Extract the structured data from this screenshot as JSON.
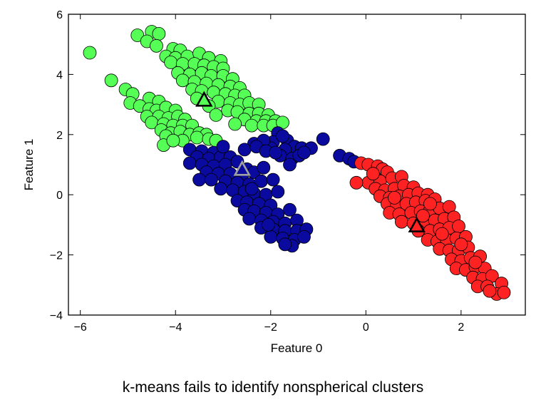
{
  "caption": "k-means fails to identify nonspherical clusters",
  "chart_data": {
    "type": "scatter",
    "title": "",
    "xlabel": "Feature 0",
    "ylabel": "Feature 1",
    "xlim": [
      -6.25,
      3.35
    ],
    "ylim": [
      -4,
      6
    ],
    "xticks": [
      -6,
      -4,
      -2,
      0,
      2
    ],
    "yticks": [
      -4,
      -2,
      0,
      2,
      4,
      6
    ],
    "xtick_labels": [
      "−6",
      "−4",
      "−2",
      "0",
      "2"
    ],
    "ytick_labels": [
      "−4",
      "−2",
      "0",
      "2",
      "4",
      "6"
    ],
    "grid": false,
    "legend": "none",
    "series": [
      {
        "color": "#55ff55",
        "points": [
          [
            -5.8,
            4.72
          ],
          [
            -4.5,
            5.42
          ],
          [
            -4.35,
            5.35
          ],
          [
            -4.8,
            5.3
          ],
          [
            -4.6,
            5.1
          ],
          [
            -4.4,
            4.95
          ],
          [
            -4.05,
            4.85
          ],
          [
            -3.9,
            4.8
          ],
          [
            -4.2,
            4.6
          ],
          [
            -4.0,
            4.55
          ],
          [
            -3.75,
            4.6
          ],
          [
            -3.5,
            4.7
          ],
          [
            -3.3,
            4.55
          ],
          [
            -3.05,
            4.45
          ],
          [
            -4.1,
            4.4
          ],
          [
            -3.85,
            4.35
          ],
          [
            -3.6,
            4.35
          ],
          [
            -3.4,
            4.3
          ],
          [
            -3.2,
            4.25
          ],
          [
            -3.0,
            4.2
          ],
          [
            -3.95,
            4.05
          ],
          [
            -3.7,
            4.0
          ],
          [
            -3.45,
            4.05
          ],
          [
            -3.25,
            3.95
          ],
          [
            -3.0,
            3.95
          ],
          [
            -2.8,
            3.85
          ],
          [
            -3.85,
            3.8
          ],
          [
            -3.6,
            3.75
          ],
          [
            -3.35,
            3.7
          ],
          [
            -3.1,
            3.65
          ],
          [
            -2.85,
            3.6
          ],
          [
            -2.65,
            3.55
          ],
          [
            -3.65,
            3.5
          ],
          [
            -3.45,
            3.45
          ],
          [
            -3.2,
            3.4
          ],
          [
            -2.95,
            3.35
          ],
          [
            -2.75,
            3.3
          ],
          [
            -2.55,
            3.3
          ],
          [
            -3.55,
            3.2
          ],
          [
            -3.1,
            3.1
          ],
          [
            -2.85,
            3.05
          ],
          [
            -2.65,
            3.0
          ],
          [
            -2.45,
            3.05
          ],
          [
            -2.25,
            3.0
          ],
          [
            -3.3,
            2.95
          ],
          [
            -2.9,
            2.8
          ],
          [
            -2.7,
            2.75
          ],
          [
            -2.45,
            2.7
          ],
          [
            -2.25,
            2.7
          ],
          [
            -2.05,
            2.65
          ],
          [
            -3.15,
            2.65
          ],
          [
            -2.55,
            2.5
          ],
          [
            -2.3,
            2.45
          ],
          [
            -2.1,
            2.45
          ],
          [
            -1.9,
            2.45
          ],
          [
            -2.75,
            2.35
          ],
          [
            -2.4,
            2.3
          ],
          [
            -2.15,
            2.3
          ],
          [
            -1.95,
            2.3
          ],
          [
            -1.75,
            2.4
          ],
          [
            -5.35,
            3.8
          ],
          [
            -5.05,
            3.5
          ],
          [
            -4.9,
            3.35
          ],
          [
            -4.95,
            3.05
          ],
          [
            -4.55,
            3.2
          ],
          [
            -4.35,
            3.1
          ],
          [
            -4.75,
            2.95
          ],
          [
            -4.55,
            2.85
          ],
          [
            -4.4,
            2.8
          ],
          [
            -4.2,
            2.9
          ],
          [
            -4.0,
            2.8
          ],
          [
            -4.6,
            2.6
          ],
          [
            -4.35,
            2.6
          ],
          [
            -4.15,
            2.55
          ],
          [
            -3.95,
            2.6
          ],
          [
            -3.8,
            2.5
          ],
          [
            -4.5,
            2.4
          ],
          [
            -4.25,
            2.35
          ],
          [
            -4.05,
            2.3
          ],
          [
            -3.85,
            2.3
          ],
          [
            -3.65,
            2.3
          ],
          [
            -4.3,
            2.15
          ],
          [
            -4.1,
            2.05
          ],
          [
            -3.9,
            2.1
          ],
          [
            -3.7,
            2.0
          ],
          [
            -3.5,
            2.05
          ],
          [
            -3.35,
            2.0
          ],
          [
            -4.2,
            1.95
          ],
          [
            -3.55,
            1.9
          ],
          [
            -3.3,
            1.85
          ],
          [
            -3.15,
            1.8
          ],
          [
            -4.25,
            1.65
          ],
          [
            -3.85,
            1.8
          ],
          [
            -4.05,
            1.8
          ]
        ]
      },
      {
        "color": "#0a0a9e",
        "points": [
          [
            -1.85,
            2.05
          ],
          [
            -1.65,
            1.8
          ],
          [
            -1.95,
            1.75
          ],
          [
            -1.5,
            1.6
          ],
          [
            -1.35,
            1.55
          ],
          [
            -1.15,
            1.55
          ],
          [
            -1.7,
            1.5
          ],
          [
            -2.0,
            1.55
          ],
          [
            -2.35,
            1.7
          ],
          [
            -2.15,
            1.8
          ],
          [
            -1.8,
            1.3
          ],
          [
            -1.55,
            1.2
          ],
          [
            -1.6,
            1.0
          ],
          [
            -1.4,
            1.3
          ],
          [
            -3.7,
            1.5
          ],
          [
            -3.45,
            1.45
          ],
          [
            -3.2,
            1.4
          ],
          [
            -3.55,
            1.25
          ],
          [
            -3.3,
            1.2
          ],
          [
            -3.05,
            1.25
          ],
          [
            -2.85,
            1.25
          ],
          [
            -3.7,
            1.05
          ],
          [
            -3.45,
            1.0
          ],
          [
            -3.2,
            0.95
          ],
          [
            -2.95,
            1.0
          ],
          [
            -2.7,
            1.1
          ],
          [
            -2.5,
            0.85
          ],
          [
            -3.35,
            0.75
          ],
          [
            -3.1,
            0.7
          ],
          [
            -2.85,
            0.7
          ],
          [
            -2.6,
            0.65
          ],
          [
            -2.35,
            0.75
          ],
          [
            -2.15,
            0.9
          ],
          [
            -3.5,
            0.5
          ],
          [
            -3.25,
            0.5
          ],
          [
            -2.95,
            0.45
          ],
          [
            -2.7,
            0.4
          ],
          [
            -2.45,
            0.35
          ],
          [
            -2.2,
            0.45
          ],
          [
            -1.95,
            0.5
          ],
          [
            -3.05,
            0.2
          ],
          [
            -2.8,
            0.15
          ],
          [
            -2.55,
            0.1
          ],
          [
            -2.35,
            0.05
          ],
          [
            -2.1,
            0.0
          ],
          [
            -1.85,
            0.1
          ],
          [
            -2.7,
            -0.2
          ],
          [
            -2.5,
            -0.25
          ],
          [
            -2.25,
            -0.3
          ],
          [
            -2.0,
            -0.35
          ],
          [
            -2.55,
            -0.5
          ],
          [
            -2.35,
            -0.55
          ],
          [
            -2.1,
            -0.6
          ],
          [
            -1.85,
            -0.65
          ],
          [
            -1.6,
            -0.5
          ],
          [
            -2.45,
            -0.8
          ],
          [
            -2.2,
            -0.85
          ],
          [
            -1.95,
            -0.9
          ],
          [
            -1.7,
            -0.95
          ],
          [
            -1.45,
            -0.85
          ],
          [
            -2.2,
            -1.1
          ],
          [
            -1.95,
            -1.15
          ],
          [
            -1.7,
            -1.2
          ],
          [
            -1.45,
            -1.2
          ],
          [
            -1.25,
            -1.15
          ],
          [
            -2.0,
            -1.4
          ],
          [
            -1.75,
            -1.45
          ],
          [
            -1.5,
            -1.5
          ],
          [
            -1.3,
            -1.4
          ],
          [
            -1.55,
            -1.7
          ],
          [
            -1.7,
            -1.65
          ],
          [
            -2.55,
            1.5
          ],
          [
            -2.3,
            1.6
          ],
          [
            -2.1,
            1.45
          ],
          [
            -1.9,
            1.4
          ],
          [
            -1.3,
            1.4
          ],
          [
            -1.75,
            1.95
          ],
          [
            -0.9,
            1.85
          ],
          [
            -0.55,
            1.3
          ],
          [
            -0.35,
            1.2
          ],
          [
            -0.25,
            1.1
          ],
          [
            -2.05,
            -1.0
          ],
          [
            -2.4,
            0.2
          ],
          [
            -3.0,
            1.6
          ]
        ]
      },
      {
        "color": "#ff2222",
        "points": [
          [
            -0.1,
            1.05
          ],
          [
            0.05,
            1.0
          ],
          [
            0.25,
            0.95
          ],
          [
            0.35,
            0.85
          ],
          [
            0.45,
            0.75
          ],
          [
            0.2,
            0.55
          ],
          [
            0.05,
            0.4
          ],
          [
            0.3,
            0.45
          ],
          [
            0.55,
            0.55
          ],
          [
            0.75,
            0.6
          ],
          [
            -0.2,
            0.4
          ],
          [
            0.2,
            0.2
          ],
          [
            0.4,
            0.15
          ],
          [
            0.6,
            0.2
          ],
          [
            0.8,
            0.3
          ],
          [
            1.0,
            0.25
          ],
          [
            0.3,
            -0.05
          ],
          [
            0.5,
            -0.1
          ],
          [
            0.7,
            -0.05
          ],
          [
            0.9,
            0.0
          ],
          [
            1.1,
            0.05
          ],
          [
            1.3,
            0.0
          ],
          [
            0.45,
            -0.3
          ],
          [
            0.65,
            -0.35
          ],
          [
            0.85,
            -0.3
          ],
          [
            1.05,
            -0.25
          ],
          [
            1.25,
            -0.2
          ],
          [
            1.45,
            -0.15
          ],
          [
            0.5,
            -0.6
          ],
          [
            0.7,
            -0.65
          ],
          [
            0.95,
            -0.6
          ],
          [
            1.15,
            -0.55
          ],
          [
            1.35,
            -0.5
          ],
          [
            1.55,
            -0.45
          ],
          [
            1.75,
            -0.4
          ],
          [
            0.75,
            -0.9
          ],
          [
            1.0,
            -0.95
          ],
          [
            1.25,
            -0.9
          ],
          [
            1.45,
            -0.85
          ],
          [
            1.65,
            -0.8
          ],
          [
            1.85,
            -0.75
          ],
          [
            1.1,
            -1.2
          ],
          [
            1.35,
            -1.2
          ],
          [
            1.55,
            -1.15
          ],
          [
            1.75,
            -1.1
          ],
          [
            1.95,
            -1.05
          ],
          [
            1.3,
            -1.5
          ],
          [
            1.5,
            -1.55
          ],
          [
            1.7,
            -1.5
          ],
          [
            1.9,
            -1.45
          ],
          [
            2.1,
            -1.4
          ],
          [
            1.55,
            -1.8
          ],
          [
            1.75,
            -1.85
          ],
          [
            1.95,
            -1.85
          ],
          [
            2.15,
            -1.75
          ],
          [
            1.8,
            -2.15
          ],
          [
            2.0,
            -2.2
          ],
          [
            2.2,
            -2.1
          ],
          [
            2.4,
            -2.05
          ],
          [
            1.9,
            -2.45
          ],
          [
            2.1,
            -2.5
          ],
          [
            2.3,
            -2.4
          ],
          [
            2.5,
            -2.45
          ],
          [
            2.25,
            -2.75
          ],
          [
            2.45,
            -2.8
          ],
          [
            2.65,
            -2.7
          ],
          [
            2.35,
            -3.05
          ],
          [
            2.55,
            -3.05
          ],
          [
            2.85,
            -2.95
          ],
          [
            2.75,
            -3.3
          ],
          [
            2.9,
            -3.25
          ],
          [
            2.6,
            -3.2
          ],
          [
            1.35,
            -0.3
          ],
          [
            0.15,
            0.7
          ],
          [
            0.6,
            -0.1
          ],
          [
            1.2,
            -0.7
          ],
          [
            1.6,
            -1.3
          ],
          [
            2.0,
            -1.65
          ],
          [
            2.3,
            -2.25
          ]
        ]
      }
    ],
    "centers": [
      {
        "x": -3.4,
        "y": 3.15,
        "fill": "#55ff55"
      },
      {
        "x": -2.6,
        "y": 0.85,
        "fill": "#0a0a9e"
      },
      {
        "x": 1.07,
        "y": -1.03,
        "fill": "#ff2222"
      }
    ]
  }
}
